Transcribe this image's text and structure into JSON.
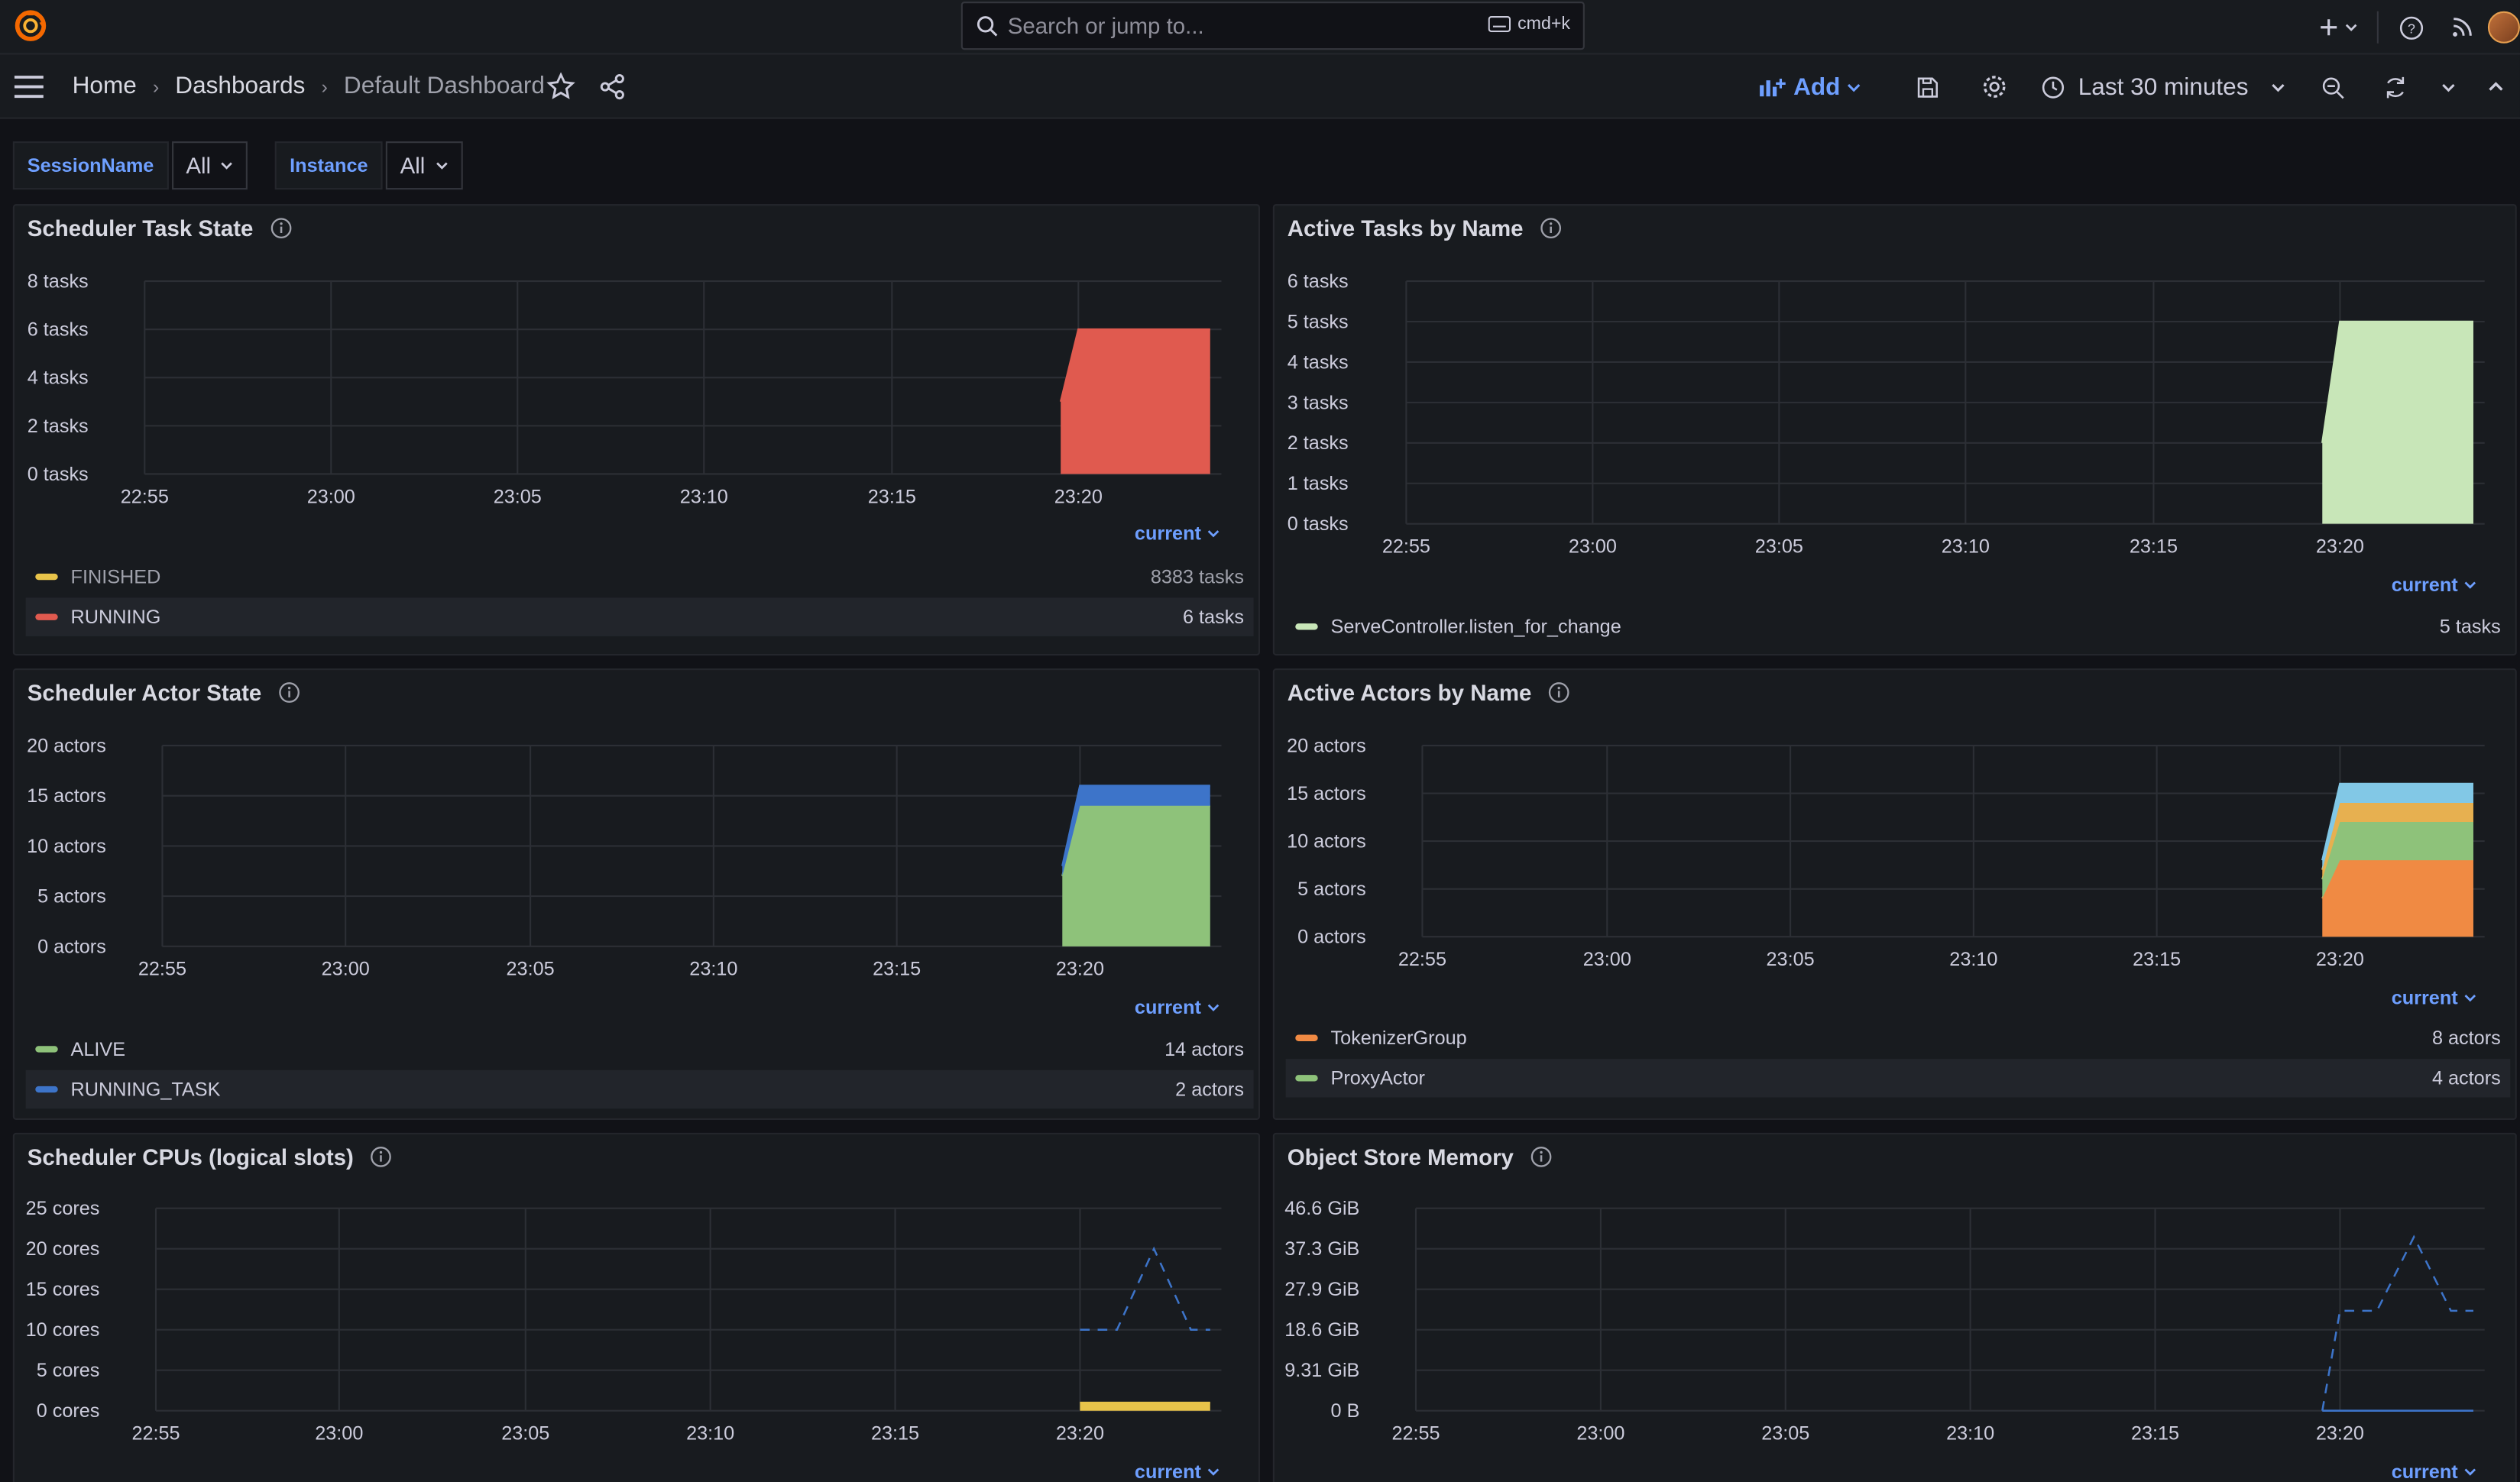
{
  "topbar": {
    "search_placeholder": "Search or jump to...",
    "search_shortcut": "cmd+k",
    "icons": [
      "plus-icon",
      "chevron-down-icon",
      "help-icon",
      "rss-icon",
      "avatar"
    ]
  },
  "navbar": {
    "breadcrumb": [
      {
        "label": "Home"
      },
      {
        "label": "Dashboards"
      },
      {
        "label": "Default Dashboard"
      }
    ],
    "add_label": "Add",
    "time_range": "Last 30 minutes"
  },
  "variables": [
    {
      "label": "SessionName",
      "value": "All"
    },
    {
      "label": "Instance",
      "value": "All"
    }
  ],
  "colors": {
    "accent": "#6e9fff",
    "red": "#e05a4f",
    "yellow": "#e8c44a",
    "green": "#8ec27a",
    "light_green": "#c8e6b8",
    "blue": "#3d74c9",
    "orange": "#f08a43",
    "light_blue": "#82c8e6",
    "amber": "#e7b050"
  },
  "panels": [
    {
      "title": "Scheduler Task State",
      "legend_toggle": "current",
      "legend": [
        {
          "name": "FINISHED",
          "value": "8383 tasks",
          "color": "#e8c44a",
          "dim": true
        },
        {
          "name": "RUNNING",
          "value": "6 tasks",
          "color": "#e05a4f"
        }
      ]
    },
    {
      "title": "Active Tasks by Name",
      "legend_toggle": "current",
      "legend": [
        {
          "name": "ServeController.listen_for_change",
          "value": "5 tasks",
          "color": "#c8e6b8"
        }
      ]
    },
    {
      "title": "Scheduler Actor State",
      "legend_toggle": "current",
      "legend": [
        {
          "name": "ALIVE",
          "value": "14 actors",
          "color": "#8ec27a"
        },
        {
          "name": "RUNNING_TASK",
          "value": "2 actors",
          "color": "#3d74c9"
        }
      ]
    },
    {
      "title": "Active Actors by Name",
      "legend_toggle": "current",
      "legend": [
        {
          "name": "TokenizerGroup",
          "value": "8 actors",
          "color": "#f08a43"
        },
        {
          "name": "ProxyActor",
          "value": "4 actors",
          "color": "#8ec27a"
        }
      ]
    },
    {
      "title": "Scheduler CPUs (logical slots)",
      "legend_toggle": "current",
      "legend": []
    },
    {
      "title": "Object Store Memory",
      "legend_toggle": "current",
      "legend": []
    }
  ],
  "chart_data": [
    {
      "type": "area",
      "title": "Scheduler Task State",
      "x_ticks": [
        "22:55",
        "23:00",
        "23:05",
        "23:10",
        "23:15",
        "23:20"
      ],
      "y_ticks": [
        "0 tasks",
        "2 tasks",
        "4 tasks",
        "6 tasks",
        "8 tasks"
      ],
      "ylim": [
        0,
        8
      ],
      "series": [
        {
          "name": "RUNNING",
          "color": "#e05a4f",
          "x": [
            "23:19",
            "23:20",
            "23:24"
          ],
          "values": [
            3,
            6,
            6
          ]
        }
      ]
    },
    {
      "type": "area",
      "title": "Active Tasks by Name",
      "x_ticks": [
        "22:55",
        "23:00",
        "23:05",
        "23:10",
        "23:15",
        "23:20"
      ],
      "y_ticks": [
        "0 tasks",
        "1 tasks",
        "2 tasks",
        "3 tasks",
        "4 tasks",
        "5 tasks",
        "6 tasks"
      ],
      "ylim": [
        0,
        6
      ],
      "series": [
        {
          "name": "ServeController.listen_for_change",
          "color": "#c8e6b8",
          "x": [
            "23:19",
            "23:20",
            "23:24"
          ],
          "values": [
            2,
            5,
            5
          ]
        }
      ]
    },
    {
      "type": "area",
      "title": "Scheduler Actor State",
      "x_ticks": [
        "22:55",
        "23:00",
        "23:05",
        "23:10",
        "23:15",
        "23:20"
      ],
      "y_ticks": [
        "0 actors",
        "5 actors",
        "10 actors",
        "15 actors",
        "20 actors"
      ],
      "ylim": [
        0,
        20
      ],
      "stacked": true,
      "series": [
        {
          "name": "ALIVE",
          "color": "#8ec27a",
          "x": [
            "23:19",
            "23:20",
            "23:24"
          ],
          "values": [
            7,
            14,
            14
          ]
        },
        {
          "name": "RUNNING_TASK",
          "color": "#3d74c9",
          "x": [
            "23:19",
            "23:20",
            "23:24"
          ],
          "values": [
            1,
            2,
            2
          ]
        }
      ]
    },
    {
      "type": "area",
      "title": "Active Actors by Name",
      "x_ticks": [
        "22:55",
        "23:00",
        "23:05",
        "23:10",
        "23:15",
        "23:20"
      ],
      "y_ticks": [
        "0 actors",
        "5 actors",
        "10 actors",
        "15 actors",
        "20 actors"
      ],
      "ylim": [
        0,
        20
      ],
      "stacked": true,
      "series": [
        {
          "name": "TokenizerGroup",
          "color": "#f08a43",
          "x": [
            "23:19",
            "23:20",
            "23:24"
          ],
          "values": [
            4,
            8,
            8
          ]
        },
        {
          "name": "ProxyActor",
          "color": "#8ec27a",
          "x": [
            "23:19",
            "23:20",
            "23:24"
          ],
          "values": [
            2,
            4,
            4
          ]
        },
        {
          "color": "#e7b050",
          "x": [
            "23:19",
            "23:20",
            "23:24"
          ],
          "values": [
            1,
            2,
            2
          ]
        },
        {
          "color": "#82c8e6",
          "x": [
            "23:19",
            "23:20",
            "23:24"
          ],
          "values": [
            1,
            2,
            2
          ]
        }
      ]
    },
    {
      "type": "line",
      "title": "Scheduler CPUs (logical slots)",
      "x_ticks": [
        "22:55",
        "23:00",
        "23:05",
        "23:10",
        "23:15",
        "23:20"
      ],
      "y_ticks": [
        "0 cores",
        "5 cores",
        "10 cores",
        "15 cores",
        "20 cores",
        "25 cores"
      ],
      "ylim": [
        0,
        25
      ],
      "series": [
        {
          "color": "#3d74c9",
          "dashed": true,
          "x": [
            "23:20",
            "23:21",
            "23:22",
            "23:23",
            "23:24"
          ],
          "values": [
            10,
            10,
            20,
            10,
            10
          ]
        },
        {
          "color": "#e8c44a",
          "fill": true,
          "x": [
            "23:20",
            "23:24"
          ],
          "values": [
            1,
            1
          ]
        }
      ]
    },
    {
      "type": "line",
      "title": "Object Store Memory",
      "x_ticks": [
        "22:55",
        "23:00",
        "23:05",
        "23:10",
        "23:15",
        "23:20"
      ],
      "y_ticks": [
        "0 B",
        "9.31 GiB",
        "18.6 GiB",
        "27.9 GiB",
        "37.3 GiB",
        "46.6 GiB"
      ],
      "ylim": [
        0,
        46.6
      ],
      "series": [
        {
          "color": "#3d74c9",
          "dashed": true,
          "x": [
            "23:19",
            "23:20",
            "23:21",
            "23:22",
            "23:23",
            "23:24"
          ],
          "values": [
            0,
            23,
            23,
            40,
            23,
            23
          ]
        },
        {
          "color": "#3d74c9",
          "x": [
            "23:19",
            "23:24"
          ],
          "values": [
            0,
            0
          ]
        }
      ]
    }
  ]
}
